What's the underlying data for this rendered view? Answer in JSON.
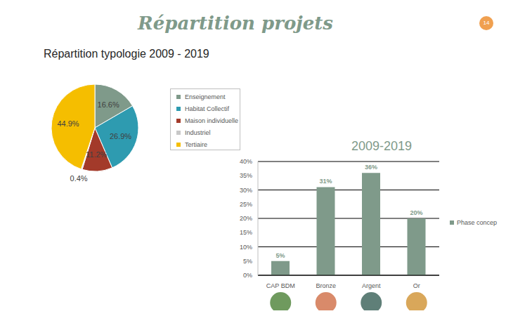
{
  "header": {
    "title": "Répartition projets",
    "page": "14"
  },
  "chart_data": [
    {
      "type": "pie",
      "title": "Répartition typologie 2009 - 2019",
      "categories": [
        "Enseignement",
        "Habitat Collectif",
        "Maison individuelle",
        "Industriel",
        "Tertiaire"
      ],
      "values": [
        16.6,
        26.9,
        11.2,
        0.4,
        44.9
      ],
      "value_labels": [
        "16.6%",
        "26.9%",
        "11.2%",
        "0.4%",
        "44.9%"
      ],
      "colors": [
        "#7f9a8a",
        "#2e9bb0",
        "#a33a2a",
        "#c8c8c8",
        "#f5be00"
      ],
      "data_labels": true,
      "legend": "right"
    },
    {
      "type": "bar",
      "title": "2009-2019",
      "categories": [
        "CAP BDM",
        "Bronze",
        "Argent",
        "Or"
      ],
      "series": [
        {
          "name": "Phase concep",
          "color": "#7f9a8a",
          "values": [
            5,
            31,
            36,
            20
          ],
          "value_labels": [
            "5%",
            "31%",
            "36%",
            "20%"
          ]
        }
      ],
      "ylim": [
        0,
        40
      ],
      "yticks": [
        {
          "value": 0,
          "label": "0%"
        },
        {
          "value": 5,
          "label": "5%"
        },
        {
          "value": 10,
          "label": "10%"
        },
        {
          "value": 15,
          "label": "15%"
        },
        {
          "value": 20,
          "label": "20%"
        },
        {
          "value": 25,
          "label": "25%"
        },
        {
          "value": 30,
          "label": "30%"
        },
        {
          "value": 35,
          "label": "35%"
        },
        {
          "value": 40,
          "label": "40%"
        }
      ],
      "grid": true,
      "legend": "right",
      "data_labels": true
    }
  ]
}
